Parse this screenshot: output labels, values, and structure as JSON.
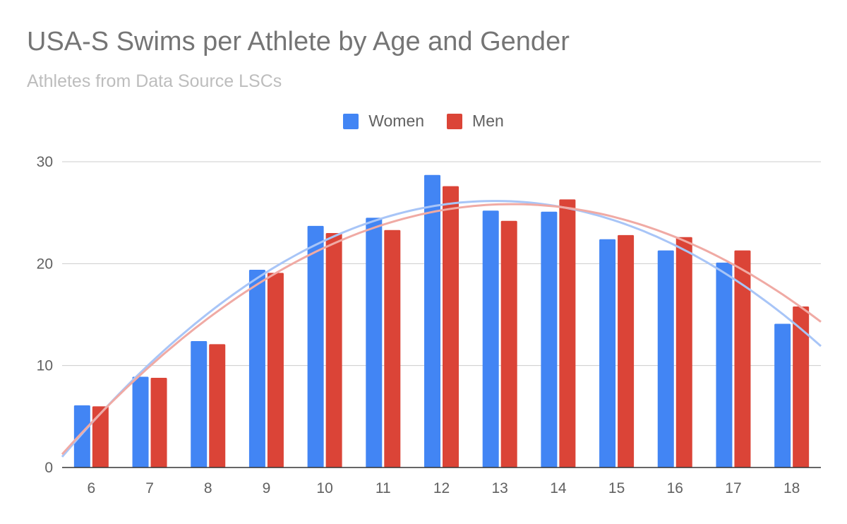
{
  "chart_data": {
    "type": "bar",
    "title": "USA-S Swims per Athlete by Age and Gender",
    "subtitle": "Athletes from Data Source LSCs",
    "xlabel": "",
    "ylabel": "",
    "categories": [
      "6",
      "7",
      "8",
      "9",
      "10",
      "11",
      "12",
      "13",
      "14",
      "15",
      "16",
      "17",
      "18"
    ],
    "series": [
      {
        "name": "Women",
        "color": "#4285f4",
        "trend_color": "#a8c5f7",
        "values": [
          6.1,
          8.9,
          12.4,
          19.4,
          23.7,
          24.5,
          28.7,
          25.2,
          25.1,
          22.4,
          21.3,
          20.1,
          14.1
        ]
      },
      {
        "name": "Men",
        "color": "#db4437",
        "trend_color": "#f0aaa4",
        "values": [
          6.0,
          8.8,
          12.1,
          19.1,
          23.0,
          23.3,
          27.6,
          24.2,
          26.3,
          22.8,
          22.6,
          21.3,
          15.8
        ]
      }
    ],
    "trendline": "polynomial",
    "ylim": [
      0,
      30
    ],
    "yticks": [
      "0",
      "10",
      "20",
      "30"
    ],
    "grid": true,
    "legend": "top-center"
  }
}
